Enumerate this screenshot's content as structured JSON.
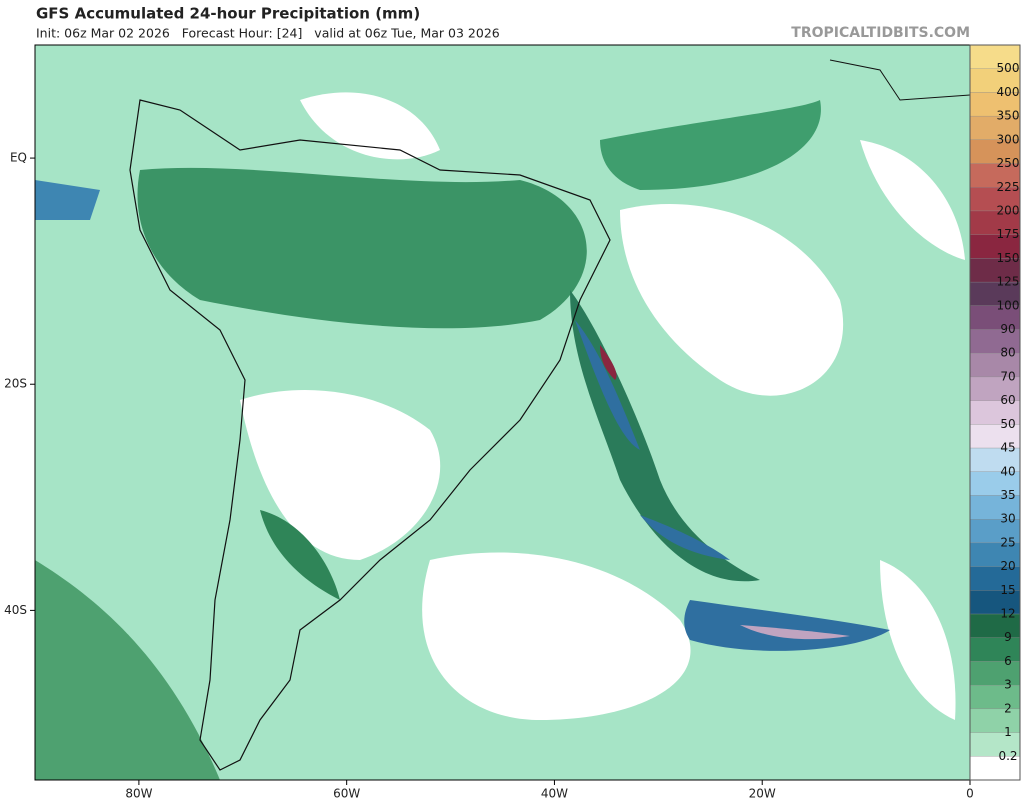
{
  "header": {
    "title": "GFS Accumulated 24-hour Precipitation (mm)",
    "subtitle": "Init: 06z Mar 02 2026   Forecast Hour: [24]   valid at 06z Tue, Mar 03 2026",
    "site": "TROPICALTIDBITS.COM"
  },
  "map": {
    "lon_extent": [
      -90,
      0
    ],
    "lat_extent": [
      10,
      -55
    ],
    "lon_ticks": [
      {
        "value": -80,
        "label": "80W"
      },
      {
        "value": -60,
        "label": "60W"
      },
      {
        "value": -40,
        "label": "40W"
      },
      {
        "value": -20,
        "label": "20W"
      },
      0
    ],
    "lat_ticks": [
      {
        "value": 0,
        "label": "EQ"
      },
      {
        "value": -20,
        "label": "20S"
      },
      {
        "value": -40,
        "label": "40S"
      }
    ]
  },
  "colorbar": {
    "levels": [
      500,
      400,
      350,
      300,
      250,
      225,
      200,
      175,
      150,
      125,
      100,
      90,
      80,
      70,
      60,
      50,
      45,
      40,
      35,
      30,
      25,
      20,
      15,
      12,
      9,
      6,
      3,
      2,
      1,
      0.2
    ],
    "colors": [
      "#f6dc8a",
      "#f2d07a",
      "#eec070",
      "#e2ac68",
      "#d6935a",
      "#c66a5c",
      "#b54e52",
      "#a23a48",
      "#8a2640",
      "#6e2c48",
      "#5a3a5a",
      "#7a4e78",
      "#906a92",
      "#a888a8",
      "#c0a4c0",
      "#dcc6dc",
      "#ece0ee",
      "#bfdcf0",
      "#9accea",
      "#76b4da",
      "#5a9ec8",
      "#3e86b2",
      "#246a98",
      "#16567e",
      "#1f6a46",
      "#2f8558",
      "#4ea170",
      "#6dbb8a",
      "#8fd2a8",
      "#b4e6c8",
      "#ffffff"
    ]
  }
}
